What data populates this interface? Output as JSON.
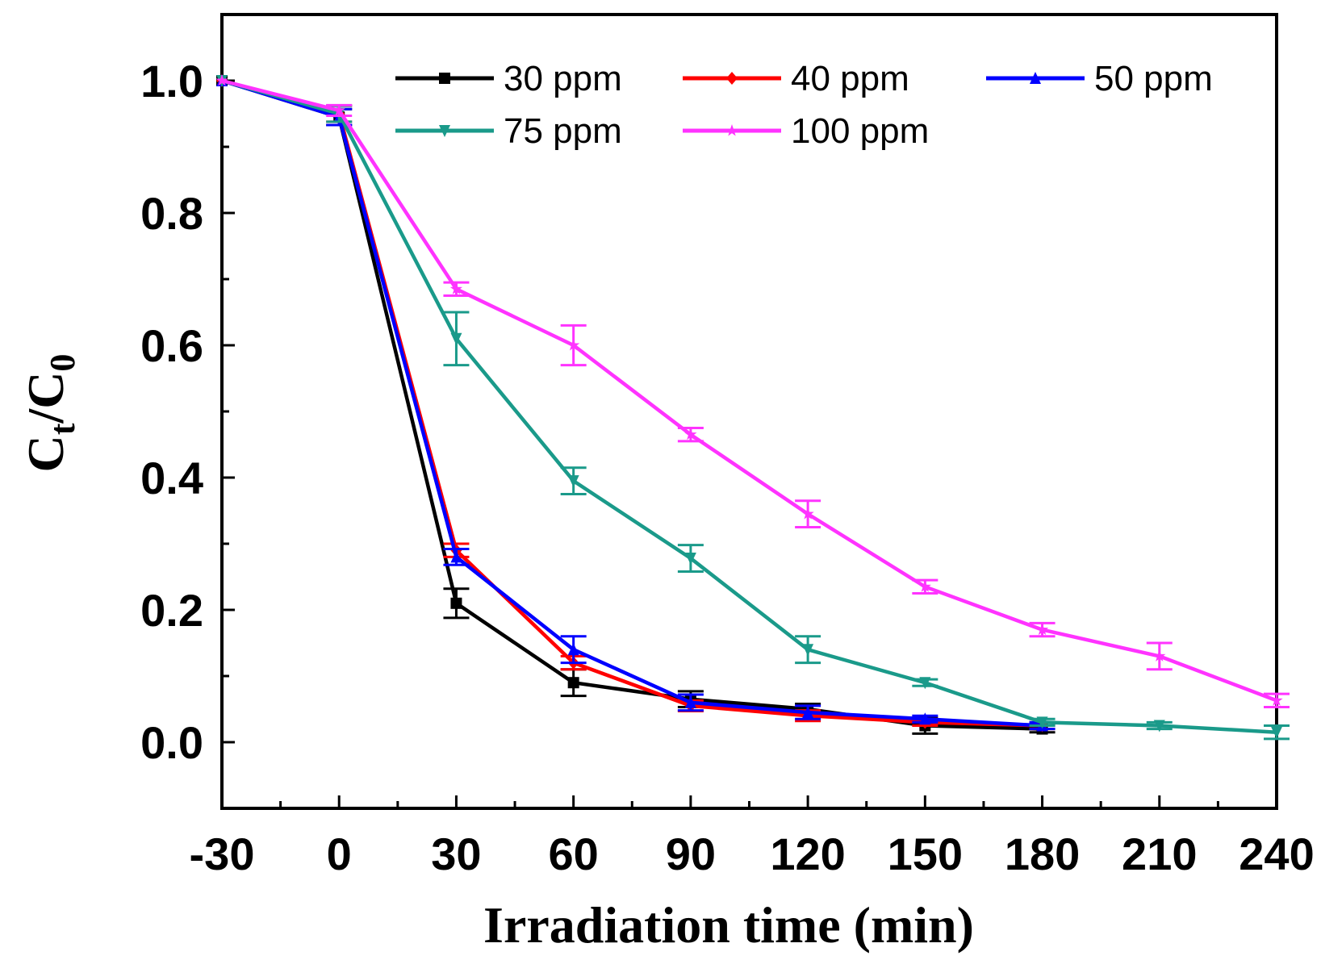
{
  "chart_data": {
    "type": "line",
    "title": "",
    "xlabel": "Irradiation time (min)",
    "ylabel": {
      "main": "C",
      "sub1": "t",
      "slash": "/C",
      "sub2": "0"
    },
    "xlim": [
      -30,
      240
    ],
    "ylim": [
      -0.1,
      1.1
    ],
    "xticks": [
      -30,
      0,
      30,
      60,
      90,
      120,
      150,
      180,
      210,
      240
    ],
    "xtick_labels": [
      "-30",
      "0",
      "30",
      "60",
      "90",
      "120",
      "150",
      "180",
      "210",
      "240"
    ],
    "yticks": [
      0.0,
      0.2,
      0.4,
      0.6,
      0.8,
      1.0
    ],
    "ytick_labels": [
      "0.0",
      "0.2",
      "0.4",
      "0.6",
      "0.8",
      "1.0"
    ],
    "legend_position": "top-right",
    "series": [
      {
        "name": "30 ppm",
        "color": "#000000",
        "marker": "square",
        "x": [
          -30,
          0,
          30,
          60,
          90,
          120,
          150,
          180
        ],
        "y": [
          1.0,
          0.945,
          0.21,
          0.09,
          0.065,
          0.05,
          0.025,
          0.02
        ],
        "err": [
          0,
          0.012,
          0.022,
          0.02,
          0.012,
          0.008,
          0.012,
          0.005
        ]
      },
      {
        "name": "40 ppm",
        "color": "#ff0000",
        "marker": "diamond",
        "x": [
          -30,
          0,
          30,
          60,
          90,
          120,
          150,
          180
        ],
        "y": [
          1.0,
          0.95,
          0.29,
          0.12,
          0.055,
          0.04,
          0.03,
          0.025
        ],
        "err": [
          0,
          0.012,
          0.01,
          0.01,
          0.008,
          0.008,
          0.005,
          0.005
        ]
      },
      {
        "name": "50 ppm",
        "color": "#0000ff",
        "marker": "triangle-up",
        "x": [
          -30,
          0,
          30,
          60,
          90,
          120,
          150,
          180
        ],
        "y": [
          1.0,
          0.945,
          0.28,
          0.14,
          0.06,
          0.045,
          0.035,
          0.025
        ],
        "err": [
          0,
          0.012,
          0.012,
          0.02,
          0.012,
          0.01,
          0.005,
          0.005
        ]
      },
      {
        "name": "75 ppm",
        "color": "#1a9a8a",
        "marker": "triangle-down",
        "x": [
          -30,
          0,
          30,
          60,
          90,
          120,
          150,
          180,
          210,
          240
        ],
        "y": [
          1.0,
          0.95,
          0.61,
          0.395,
          0.278,
          0.14,
          0.09,
          0.03,
          0.025,
          0.015
        ],
        "err": [
          0,
          0.012,
          0.04,
          0.02,
          0.02,
          0.02,
          0.005,
          0.005,
          0.005,
          0.01
        ]
      },
      {
        "name": "100 ppm",
        "color": "#ff33ff",
        "marker": "star",
        "x": [
          -30,
          0,
          30,
          60,
          90,
          120,
          150,
          180,
          210,
          240
        ],
        "y": [
          1.0,
          0.955,
          0.685,
          0.6,
          0.465,
          0.345,
          0.235,
          0.17,
          0.13,
          0.063
        ],
        "err": [
          0,
          0.008,
          0.01,
          0.03,
          0.01,
          0.02,
          0.01,
          0.01,
          0.02,
          0.01
        ]
      }
    ]
  }
}
